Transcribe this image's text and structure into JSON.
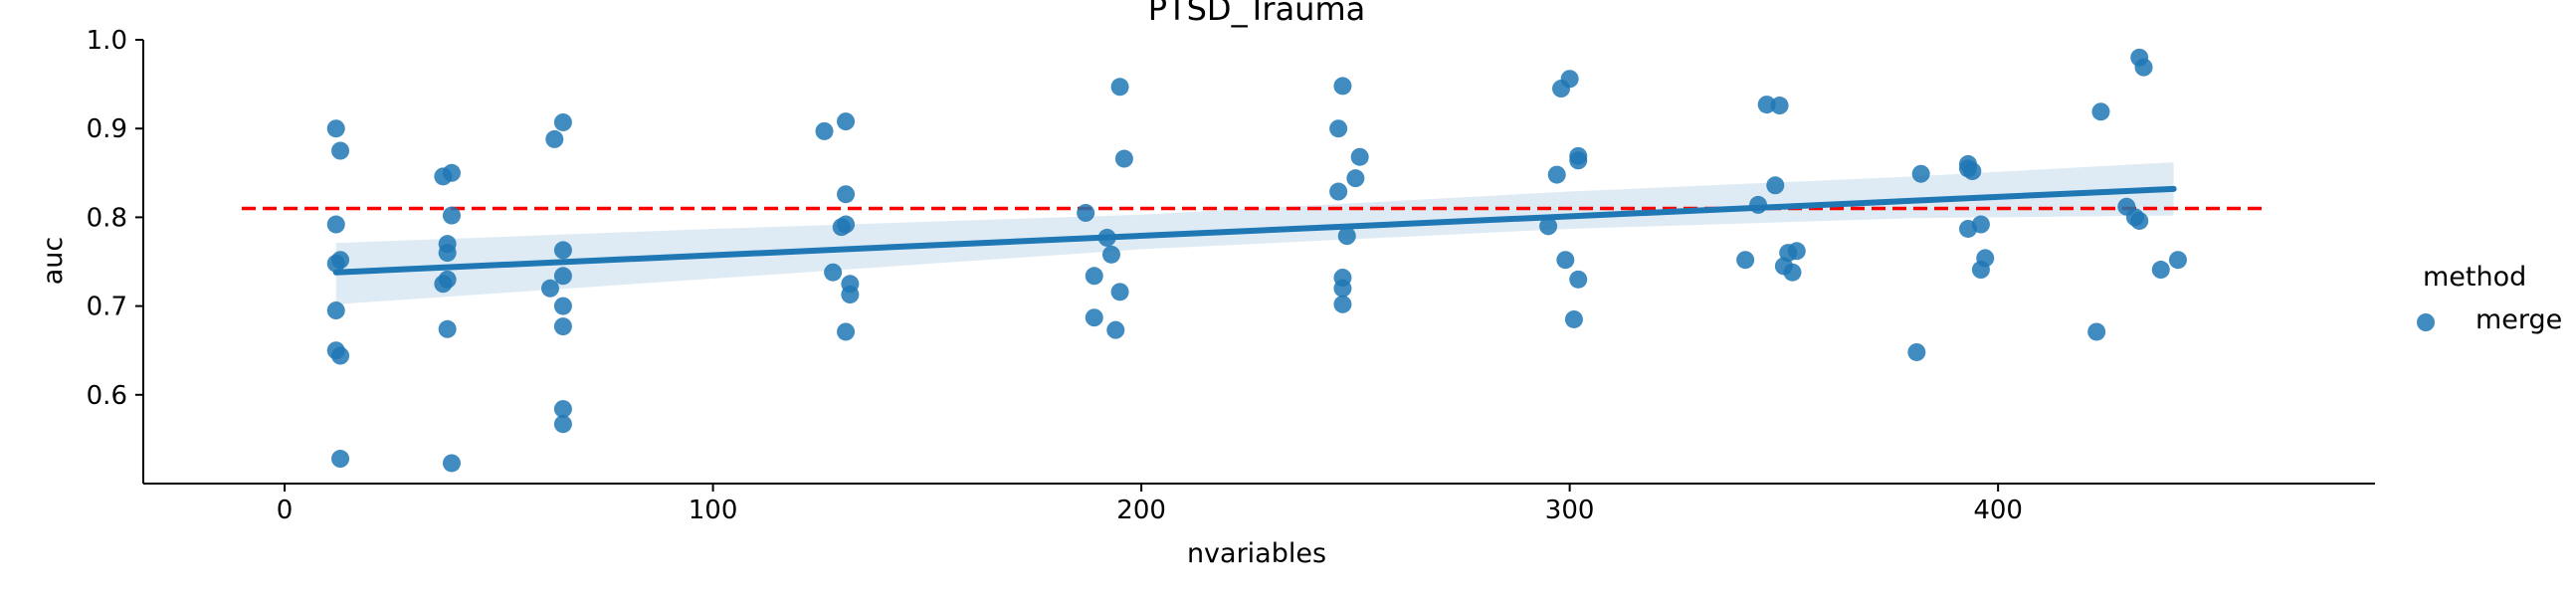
{
  "chart_data": {
    "type": "scatter",
    "title": "PTSD_Trauma",
    "xlabel": "nvariables",
    "ylabel": "auc",
    "xlim": [
      -33,
      488
    ],
    "ylim": [
      0.5,
      1.0
    ],
    "xticks": [
      0,
      100,
      200,
      300,
      400
    ],
    "yticks": [
      0.6,
      0.7,
      0.8,
      0.9,
      1.0
    ],
    "xtick_labels": [
      "0",
      "100",
      "200",
      "300",
      "400"
    ],
    "ytick_labels": [
      "0.6",
      "0.7",
      "0.8",
      "0.9",
      "1.0"
    ],
    "grid": false,
    "legend": {
      "title": "method",
      "placement": "right",
      "entries": [
        {
          "label": "merge",
          "color": "#1f77b4"
        }
      ]
    },
    "reference_line": {
      "y": 0.81,
      "x_range": [
        -10,
        462
      ],
      "color": "#ff0000",
      "style": "dashed"
    },
    "regression_line": {
      "x": [
        12,
        441
      ],
      "y": [
        0.738,
        0.832
      ],
      "color": "#1f77b4"
    },
    "confidence_band": {
      "x": [
        12,
        100,
        200,
        300,
        380,
        441
      ],
      "lower": [
        0.702,
        0.731,
        0.764,
        0.787,
        0.799,
        0.802
      ],
      "upper": [
        0.771,
        0.787,
        0.803,
        0.829,
        0.846,
        0.862
      ],
      "color": "#1f77b4"
    },
    "series": [
      {
        "name": "merge",
        "color": "#1f77b4",
        "points": [
          {
            "x": 12,
            "y": 0.9
          },
          {
            "x": 13,
            "y": 0.875
          },
          {
            "x": 12,
            "y": 0.792
          },
          {
            "x": 13,
            "y": 0.752
          },
          {
            "x": 12,
            "y": 0.748
          },
          {
            "x": 12,
            "y": 0.695
          },
          {
            "x": 12,
            "y": 0.65
          },
          {
            "x": 13,
            "y": 0.644
          },
          {
            "x": 13,
            "y": 0.528
          },
          {
            "x": 37,
            "y": 0.846
          },
          {
            "x": 39,
            "y": 0.85
          },
          {
            "x": 39,
            "y": 0.802
          },
          {
            "x": 38,
            "y": 0.77
          },
          {
            "x": 38,
            "y": 0.76
          },
          {
            "x": 38,
            "y": 0.73
          },
          {
            "x": 37,
            "y": 0.725
          },
          {
            "x": 38,
            "y": 0.674
          },
          {
            "x": 39,
            "y": 0.523
          },
          {
            "x": 63,
            "y": 0.888
          },
          {
            "x": 65,
            "y": 0.907
          },
          {
            "x": 65,
            "y": 0.763
          },
          {
            "x": 65,
            "y": 0.734
          },
          {
            "x": 62,
            "y": 0.72
          },
          {
            "x": 65,
            "y": 0.7
          },
          {
            "x": 65,
            "y": 0.677
          },
          {
            "x": 65,
            "y": 0.584
          },
          {
            "x": 65,
            "y": 0.567
          },
          {
            "x": 126,
            "y": 0.897
          },
          {
            "x": 131,
            "y": 0.908
          },
          {
            "x": 131,
            "y": 0.826
          },
          {
            "x": 131,
            "y": 0.792
          },
          {
            "x": 130,
            "y": 0.789
          },
          {
            "x": 128,
            "y": 0.738
          },
          {
            "x": 132,
            "y": 0.725
          },
          {
            "x": 132,
            "y": 0.713
          },
          {
            "x": 131,
            "y": 0.671
          },
          {
            "x": 187,
            "y": 0.805
          },
          {
            "x": 192,
            "y": 0.777
          },
          {
            "x": 193,
            "y": 0.758
          },
          {
            "x": 189,
            "y": 0.734
          },
          {
            "x": 195,
            "y": 0.716
          },
          {
            "x": 189,
            "y": 0.687
          },
          {
            "x": 194,
            "y": 0.673
          },
          {
            "x": 195,
            "y": 0.947
          },
          {
            "x": 196,
            "y": 0.866
          },
          {
            "x": 247,
            "y": 0.948
          },
          {
            "x": 246,
            "y": 0.9
          },
          {
            "x": 251,
            "y": 0.868
          },
          {
            "x": 250,
            "y": 0.844
          },
          {
            "x": 246,
            "y": 0.829
          },
          {
            "x": 248,
            "y": 0.779
          },
          {
            "x": 247,
            "y": 0.732
          },
          {
            "x": 247,
            "y": 0.72
          },
          {
            "x": 247,
            "y": 0.702
          },
          {
            "x": 300,
            "y": 0.956
          },
          {
            "x": 298,
            "y": 0.945
          },
          {
            "x": 302,
            "y": 0.869
          },
          {
            "x": 302,
            "y": 0.864
          },
          {
            "x": 297,
            "y": 0.848
          },
          {
            "x": 295,
            "y": 0.79
          },
          {
            "x": 299,
            "y": 0.752
          },
          {
            "x": 302,
            "y": 0.73
          },
          {
            "x": 301,
            "y": 0.685
          },
          {
            "x": 346,
            "y": 0.927
          },
          {
            "x": 349,
            "y": 0.926
          },
          {
            "x": 348,
            "y": 0.836
          },
          {
            "x": 344,
            "y": 0.814
          },
          {
            "x": 351,
            "y": 0.76
          },
          {
            "x": 353,
            "y": 0.762
          },
          {
            "x": 341,
            "y": 0.752
          },
          {
            "x": 350,
            "y": 0.745
          },
          {
            "x": 352,
            "y": 0.738
          },
          {
            "x": 381,
            "y": 0.648
          },
          {
            "x": 382,
            "y": 0.849
          },
          {
            "x": 393,
            "y": 0.86
          },
          {
            "x": 394,
            "y": 0.852
          },
          {
            "x": 393,
            "y": 0.787
          },
          {
            "x": 396,
            "y": 0.792
          },
          {
            "x": 397,
            "y": 0.754
          },
          {
            "x": 396,
            "y": 0.741
          },
          {
            "x": 393,
            "y": 0.855
          },
          {
            "x": 433,
            "y": 0.98
          },
          {
            "x": 434,
            "y": 0.969
          },
          {
            "x": 424,
            "y": 0.919
          },
          {
            "x": 430,
            "y": 0.812
          },
          {
            "x": 432,
            "y": 0.8
          },
          {
            "x": 433,
            "y": 0.796
          },
          {
            "x": 438,
            "y": 0.741
          },
          {
            "x": 442,
            "y": 0.752
          },
          {
            "x": 423,
            "y": 0.671
          }
        ]
      }
    ]
  }
}
